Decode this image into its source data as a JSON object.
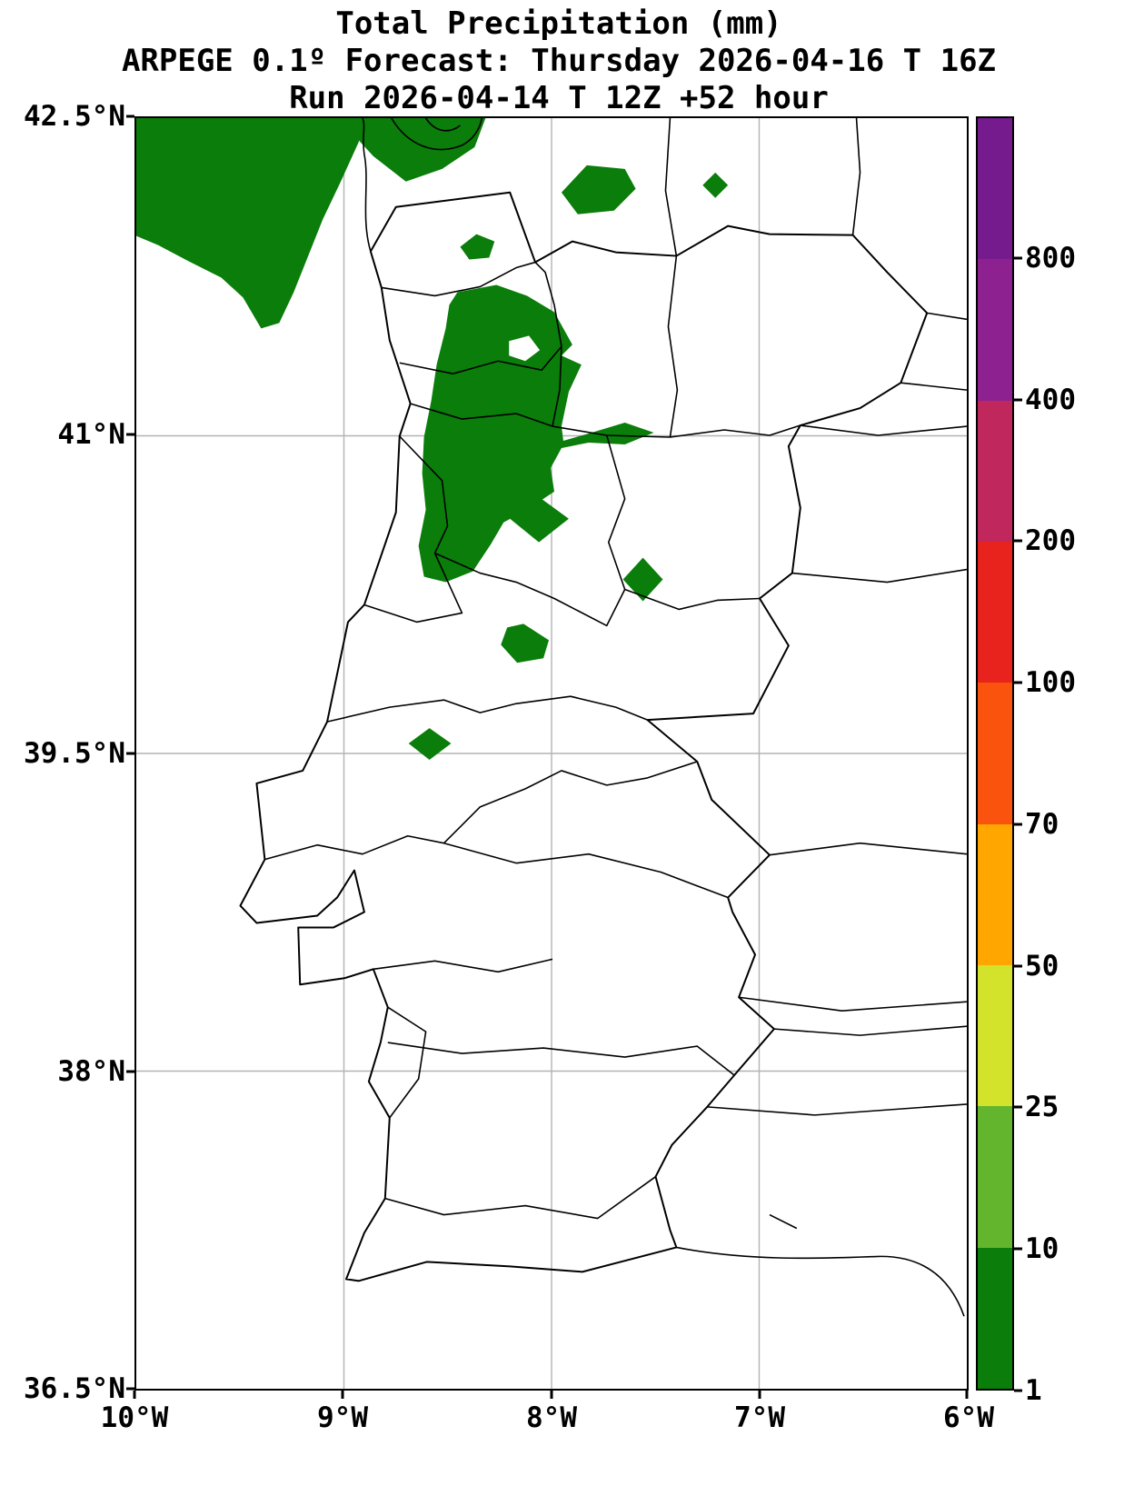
{
  "title": {
    "line1": "Total Precipitation (mm)",
    "line2": "ARPEGE 0.1º Forecast: Thursday 2026-04-16 T 16Z",
    "line3": "Run 2026-04-14 T 12Z +52 hour"
  },
  "axes": {
    "x_tick_labels": [
      "10°W",
      "9°W",
      "8°W",
      "7°W",
      "6°W"
    ],
    "y_tick_labels": [
      "42.5°N",
      "41°N",
      "39.5°N",
      "38°N",
      "36.5°N"
    ]
  },
  "colorbar": {
    "tick_labels": [
      "800",
      "400",
      "200",
      "100",
      "70",
      "50",
      "25",
      "10",
      "1"
    ],
    "segments": [
      {
        "range": "gt-800",
        "color": "#751b8e"
      },
      {
        "range": "400-800",
        "color": "#8e2190"
      },
      {
        "range": "200-400",
        "color": "#c0275c"
      },
      {
        "range": "100-200",
        "color": "#e8221c"
      },
      {
        "range": "70-100",
        "color": "#fa530d"
      },
      {
        "range": "50-70",
        "color": "#ffa600"
      },
      {
        "range": "25-50",
        "color": "#d3e22b"
      },
      {
        "range": "10-25",
        "color": "#62b52d"
      },
      {
        "range": "1-10",
        "color": "#0a7d0a"
      }
    ]
  },
  "map": {
    "precipitation_color": "#0a7d0a",
    "boundary_color": "#000000",
    "grid_color": "#b3b3b3",
    "units": "mm"
  }
}
